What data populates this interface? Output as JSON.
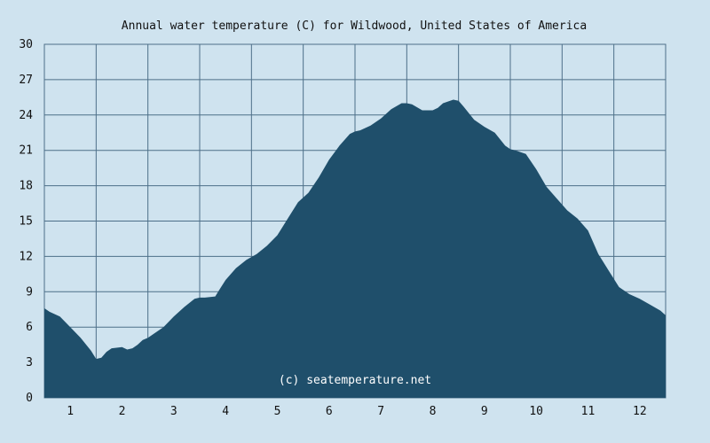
{
  "chart_data": {
    "type": "area",
    "title": "Annual water temperature (C) for Wildwood, United States of America",
    "watermark": "(c) seatemperature.net",
    "xlabel": "",
    "ylabel": "",
    "x_ticks": [
      "1",
      "2",
      "3",
      "4",
      "5",
      "6",
      "7",
      "8",
      "9",
      "10",
      "11",
      "12"
    ],
    "y_ticks": [
      "0",
      "3",
      "6",
      "9",
      "12",
      "15",
      "18",
      "21",
      "24",
      "27",
      "30"
    ],
    "ylim": [
      0,
      30
    ],
    "xlim": [
      0.5,
      12.5
    ],
    "grid": true,
    "fill_color": "#1f4f6b",
    "background_color": "#cfe3ef",
    "grid_color": "#4d6f88",
    "series": [
      {
        "x": [
          0.5,
          0.6,
          0.8,
          1.0,
          1.2,
          1.4,
          1.5,
          1.6,
          1.7,
          1.8,
          2.0,
          2.1,
          2.2,
          2.3,
          2.4,
          2.5,
          2.6,
          2.8,
          3.0,
          3.2,
          3.4,
          3.5,
          3.6,
          3.8,
          3.9,
          4.0,
          4.2,
          4.4,
          4.6,
          4.8,
          5.0,
          5.2,
          5.4,
          5.6,
          5.8,
          6.0,
          6.2,
          6.4,
          6.5,
          6.6,
          6.8,
          7.0,
          7.2,
          7.4,
          7.5,
          7.6,
          7.8,
          8.0,
          8.1,
          8.2,
          8.4,
          8.5,
          8.6,
          8.8,
          9.0,
          9.2,
          9.4,
          9.5,
          9.6,
          9.8,
          10.0,
          10.2,
          10.4,
          10.6,
          10.8,
          11.0,
          11.2,
          11.4,
          11.6,
          11.8,
          12.0,
          12.2,
          12.4,
          12.5
        ],
        "y": [
          7.6,
          7.3,
          6.9,
          6.0,
          5.1,
          4.0,
          3.3,
          3.4,
          3.9,
          4.2,
          4.3,
          4.1,
          4.2,
          4.5,
          4.9,
          5.1,
          5.4,
          6.0,
          6.9,
          7.7,
          8.4,
          8.5,
          8.5,
          8.6,
          9.3,
          10.0,
          11.0,
          11.7,
          12.2,
          12.9,
          13.8,
          15.2,
          16.6,
          17.4,
          18.7,
          20.2,
          21.4,
          22.4,
          22.6,
          22.7,
          23.1,
          23.7,
          24.5,
          25.0,
          25.0,
          24.9,
          24.4,
          24.4,
          24.6,
          25.0,
          25.3,
          25.2,
          24.7,
          23.6,
          23.0,
          22.5,
          21.4,
          21.1,
          21.0,
          20.7,
          19.4,
          17.9,
          16.9,
          15.9,
          15.2,
          14.2,
          12.2,
          10.8,
          9.4,
          8.8,
          8.4,
          7.9,
          7.4,
          7.0
        ]
      }
    ]
  }
}
